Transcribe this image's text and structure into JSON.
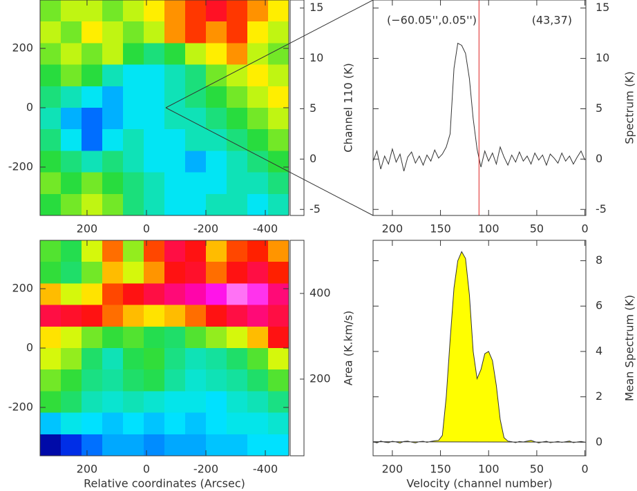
{
  "chart_data": [
    {
      "type": "heatmap",
      "colormap": "rainbow",
      "xlim": [
        358,
        -479
      ],
      "ylim": [
        -363,
        363
      ],
      "xticks": [
        200,
        0,
        -200,
        -400
      ],
      "yticks": [
        -200,
        0,
        200
      ],
      "clim": [
        -5.6,
        15.8
      ],
      "cticks": [
        -5,
        0,
        5,
        10,
        15
      ],
      "colorbar_label": "Channel 110 (K)",
      "values": [
        [
          5,
          6,
          6,
          5,
          6,
          7,
          8,
          9,
          10,
          9,
          8,
          7
        ],
        [
          6,
          5,
          7,
          6,
          5,
          6,
          8,
          9,
          8,
          9,
          7,
          6
        ],
        [
          5,
          6,
          5,
          6,
          4,
          3,
          4,
          6,
          7,
          8,
          6,
          5
        ],
        [
          4,
          5,
          4,
          2,
          1,
          1,
          2,
          3,
          5,
          6,
          7,
          6
        ],
        [
          3,
          2,
          1,
          0,
          1,
          1,
          2,
          3,
          4,
          5,
          6,
          7
        ],
        [
          2,
          0,
          -1,
          0,
          1,
          1,
          2,
          2,
          3,
          4,
          5,
          6
        ],
        [
          3,
          1,
          -1,
          1,
          2,
          1,
          1,
          2,
          2,
          3,
          4,
          5
        ],
        [
          4,
          3,
          2,
          3,
          2,
          1,
          1,
          0,
          1,
          2,
          3,
          4
        ],
        [
          5,
          4,
          5,
          4,
          3,
          2,
          1,
          1,
          1,
          2,
          2,
          3
        ],
        [
          4,
          5,
          6,
          5,
          3,
          2,
          1,
          1,
          2,
          2,
          1,
          2
        ]
      ]
    },
    {
      "type": "heatmap",
      "colormap": "rainbow",
      "xlim": [
        358,
        -479
      ],
      "ylim": [
        -363,
        363
      ],
      "xticks": [
        200,
        0,
        -200,
        -400
      ],
      "yticks": [
        -200,
        0,
        200
      ],
      "clim": [
        21,
        524
      ],
      "cticks": [
        200,
        400
      ],
      "colorbar_label": "Area (K.km/s)",
      "x_label": "Relative coordinates (Arcsec)",
      "values": [
        [
          260,
          240,
          300,
          350,
          280,
          360,
          400,
          380,
          330,
          360,
          370,
          340
        ],
        [
          250,
          230,
          270,
          330,
          300,
          340,
          380,
          390,
          350,
          380,
          400,
          370
        ],
        [
          330,
          300,
          320,
          360,
          380,
          400,
          420,
          440,
          470,
          500,
          480,
          420
        ],
        [
          400,
          390,
          380,
          350,
          330,
          320,
          330,
          350,
          380,
          400,
          420,
          400
        ],
        [
          320,
          300,
          270,
          250,
          260,
          240,
          230,
          260,
          280,
          300,
          330,
          380
        ],
        [
          300,
          280,
          230,
          200,
          240,
          250,
          220,
          200,
          210,
          230,
          260,
          300
        ],
        [
          270,
          250,
          220,
          210,
          230,
          240,
          210,
          190,
          200,
          210,
          230,
          260
        ],
        [
          250,
          230,
          200,
          190,
          200,
          190,
          180,
          180,
          170,
          190,
          200,
          220
        ],
        [
          160,
          180,
          170,
          160,
          170,
          160,
          170,
          160,
          170,
          180,
          180,
          190
        ],
        [
          70,
          100,
          130,
          150,
          150,
          140,
          150,
          150,
          160,
          160,
          170,
          170
        ]
      ]
    },
    {
      "type": "line",
      "color": "#333333",
      "marker_color": "#e02020",
      "marker_x": 110,
      "position_label": "(−60.05'',0.05'')",
      "pixel_label": "(43,37)",
      "y_label": "Spectrum (K)",
      "xlim": [
        220,
        -1
      ],
      "ylim": [
        -5.6,
        15.8
      ],
      "xticks": [
        200,
        150,
        100,
        50,
        0
      ],
      "yticks": [
        -5,
        0,
        5,
        10,
        15
      ],
      "x": [
        220,
        216,
        212,
        208,
        204,
        200,
        196,
        192,
        188,
        184,
        180,
        176,
        172,
        168,
        164,
        160,
        156,
        152,
        148,
        144,
        140,
        136,
        132,
        128,
        124,
        120,
        116,
        112,
        108,
        104,
        100,
        96,
        92,
        88,
        84,
        80,
        76,
        72,
        68,
        64,
        60,
        56,
        52,
        48,
        44,
        40,
        36,
        32,
        28,
        24,
        20,
        16,
        12,
        8,
        4,
        0
      ],
      "values": [
        -0.2,
        0.8,
        -1.0,
        0.3,
        -0.5,
        1.0,
        -0.3,
        0.5,
        -1.2,
        0.2,
        0.7,
        -0.4,
        0.3,
        -0.6,
        0.4,
        -0.2,
        0.9,
        0.1,
        0.5,
        1.2,
        2.5,
        9.0,
        11.5,
        11.3,
        10.5,
        8.0,
        4.0,
        1.0,
        -0.8,
        0.8,
        -0.2,
        0.6,
        -0.5,
        1.2,
        0.2,
        -0.6,
        0.4,
        -0.3,
        0.7,
        -0.2,
        0.3,
        -0.5,
        0.6,
        -0.1,
        0.4,
        -0.6,
        0.5,
        0.1,
        -0.4,
        0.6,
        -0.2,
        0.3,
        -0.5,
        0.2,
        0.8,
        -0.1
      ]
    },
    {
      "type": "area",
      "color": "#ffff00",
      "line_color": "#333333",
      "x_label": "Velocity (channel number)",
      "y_label": "Mean Spectrum (K)",
      "xlim": [
        220,
        -1
      ],
      "ylim": [
        -0.6,
        8.9
      ],
      "xticks": [
        200,
        150,
        100,
        50,
        0
      ],
      "yticks": [
        0,
        2,
        4,
        6,
        8
      ],
      "x": [
        220,
        216,
        212,
        208,
        204,
        200,
        196,
        192,
        188,
        184,
        180,
        176,
        172,
        168,
        164,
        160,
        156,
        152,
        148,
        144,
        140,
        136,
        132,
        128,
        124,
        120,
        116,
        112,
        108,
        104,
        100,
        96,
        92,
        88,
        84,
        80,
        76,
        72,
        68,
        64,
        60,
        56,
        52,
        48,
        44,
        40,
        36,
        32,
        28,
        24,
        20,
        16,
        12,
        8,
        4,
        0
      ],
      "values": [
        0.02,
        -0.03,
        0.05,
        0.0,
        -0.02,
        0.04,
        0.01,
        -0.04,
        0.03,
        0.05,
        0.0,
        -0.03,
        0.02,
        0.04,
        -0.01,
        0.03,
        0.06,
        0.08,
        0.3,
        2.0,
        4.5,
        6.8,
        8.0,
        8.4,
        8.1,
        6.5,
        4.0,
        2.8,
        3.2,
        3.9,
        4.0,
        3.6,
        2.5,
        1.0,
        0.2,
        0.05,
        0.02,
        -0.02,
        0.03,
        0.01,
        0.05,
        0.08,
        0.02,
        -0.03,
        0.01,
        0.04,
        -0.02,
        0.0,
        0.03,
        -0.01,
        0.02,
        0.05,
        -0.02,
        0.01,
        0.03,
        0.0
      ]
    }
  ]
}
